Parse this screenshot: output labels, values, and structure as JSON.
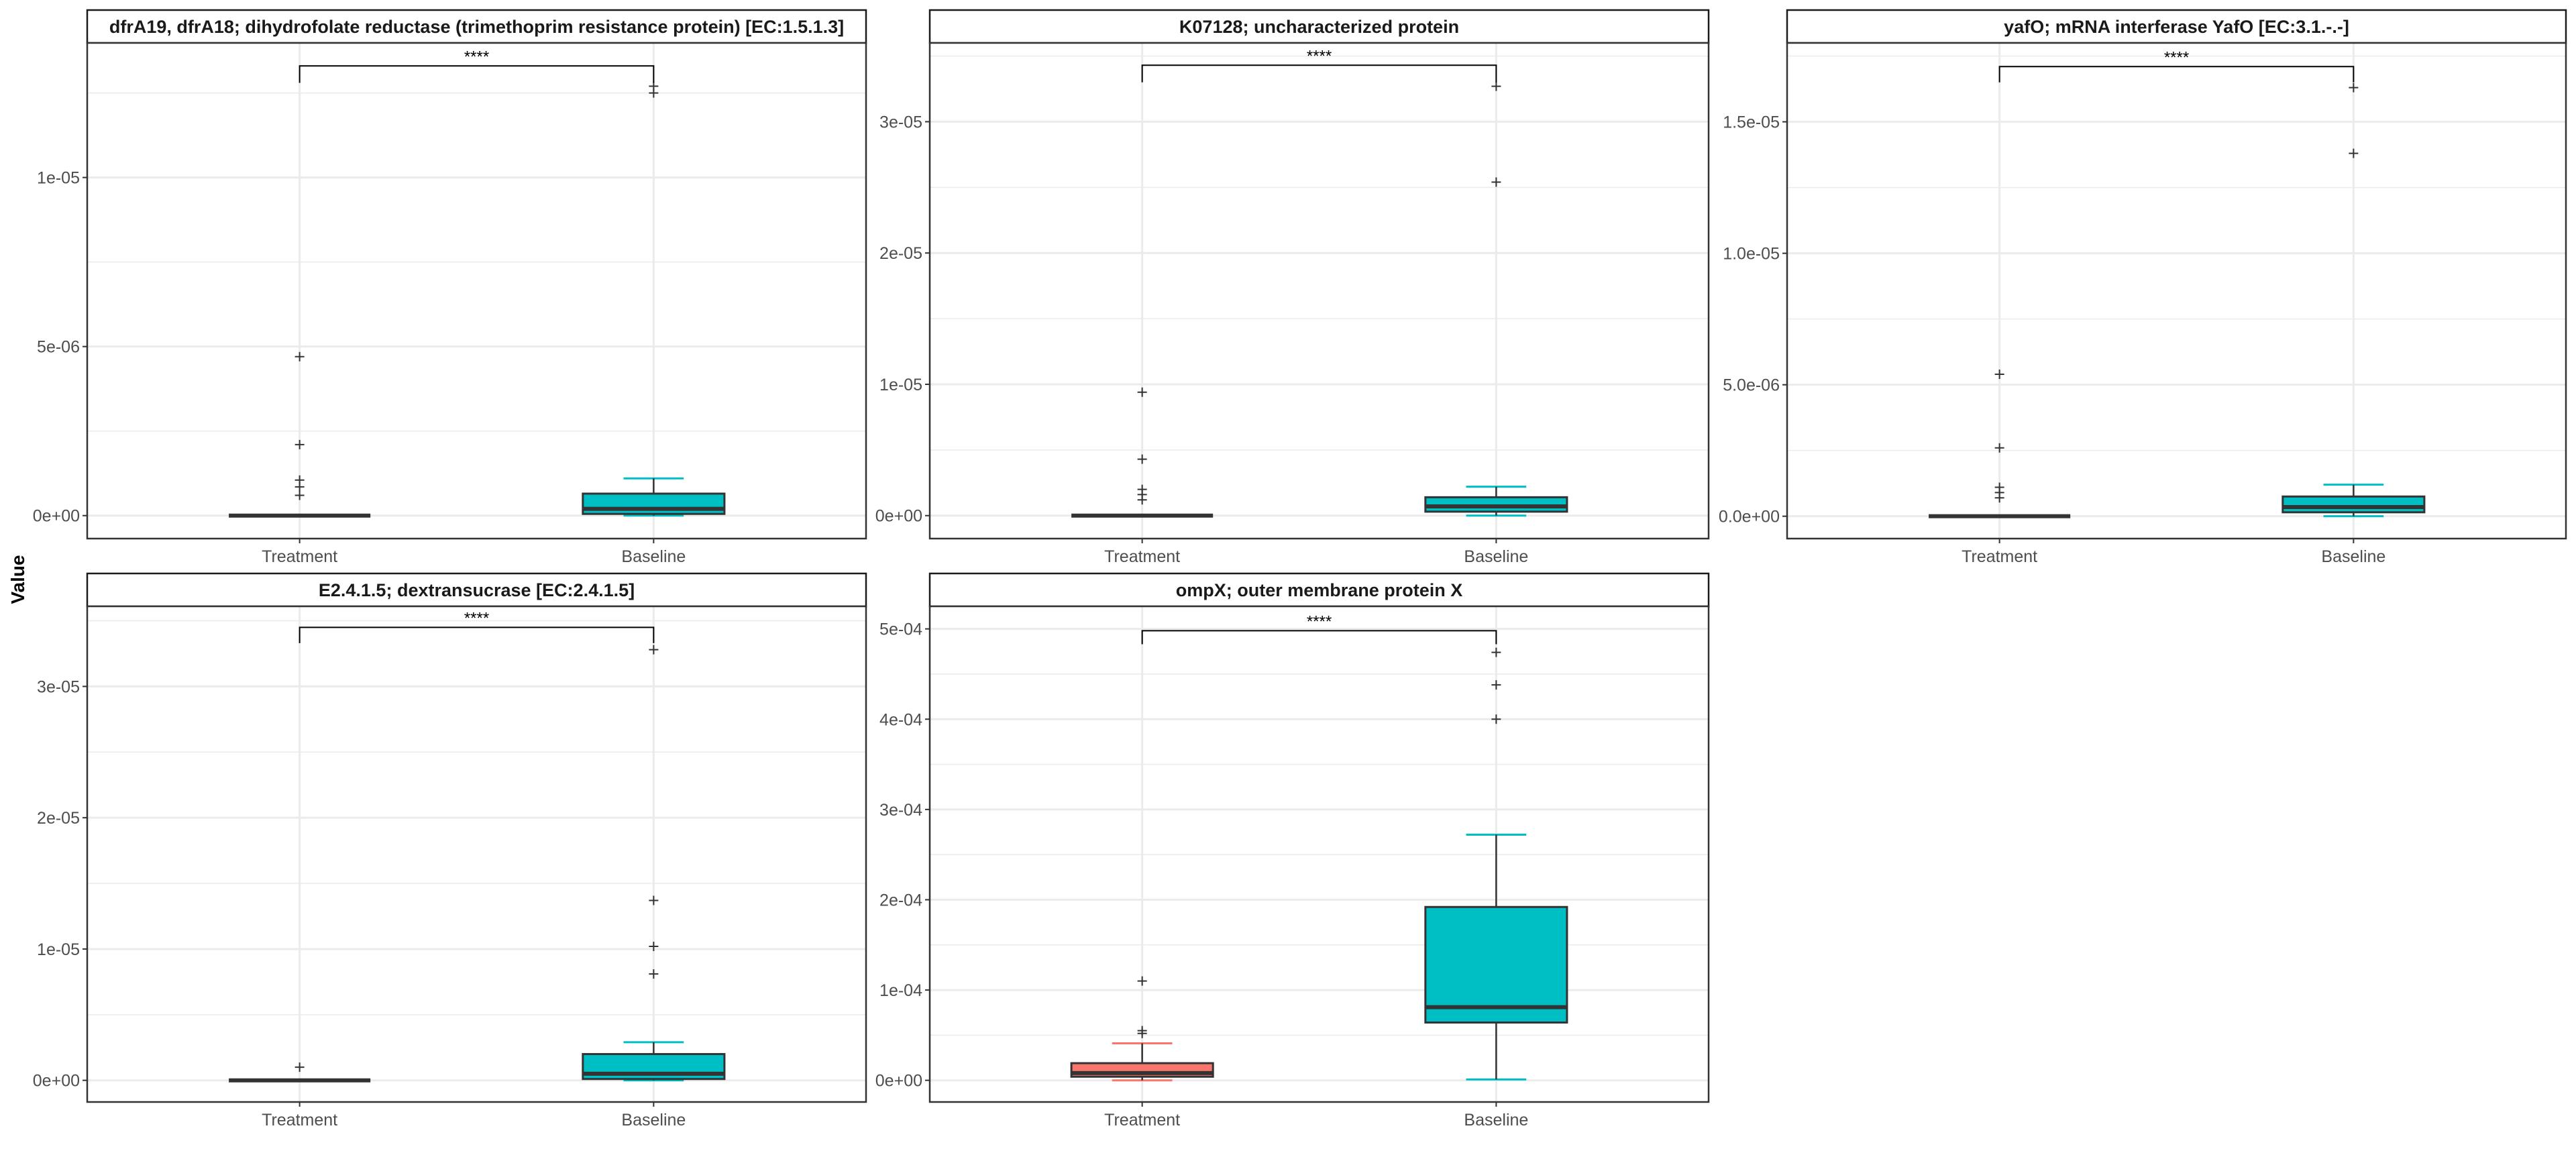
{
  "chart_data": [
    {
      "type": "box",
      "title": "dfrA19, dfrA18; dihydrofolate reductase (trimethoprim resistance protein) [EC:1.5.1.3]",
      "categories": [
        "Treatment",
        "Baseline"
      ],
      "ylim": [
        -6.8e-07,
        1.398e-05
      ],
      "yticks": [
        0,
        5e-06,
        1e-05
      ],
      "ytick_labels": [
        "0e+00",
        "5e-06",
        "1e-05"
      ],
      "yminor": [
        2.5e-06,
        7.5e-06,
        1.25e-05
      ],
      "significance": {
        "label": "****",
        "y": 1.33e-05,
        "y_drop": 1.28e-05
      },
      "boxes": [
        {
          "whisker_low": 0,
          "q1": 0,
          "median": 0,
          "q3": 0,
          "whisker_high": 0,
          "outliers": [
            4.7e-06,
            2.1e-06,
            1.05e-06,
            8.5e-07,
            6e-07
          ]
        },
        {
          "whisker_low": 0,
          "q1": 5e-08,
          "median": 2e-07,
          "q3": 6.5e-07,
          "whisker_high": 1.1e-06,
          "outliers": [
            1.27e-05,
            1.25e-05
          ]
        }
      ]
    },
    {
      "type": "box",
      "title": "K07128; uncharacterized protein",
      "categories": [
        "Treatment",
        "Baseline"
      ],
      "ylim": [
        -1.75e-06,
        3.6e-05
      ],
      "yticks": [
        0,
        1e-05,
        2e-05,
        3e-05
      ],
      "ytick_labels": [
        "0e+00",
        "1e-05",
        "2e-05",
        "3e-05"
      ],
      "yminor": [
        5e-06,
        1.5e-05,
        2.5e-05,
        3.5e-05
      ],
      "significance": {
        "label": "****",
        "y": 3.43e-05,
        "y_drop": 3.3e-05
      },
      "boxes": [
        {
          "whisker_low": 0,
          "q1": 0,
          "median": 0,
          "q3": 0,
          "whisker_high": 0,
          "outliers": [
            9.4e-06,
            4.3e-06,
            2e-06,
            1.6e-06,
            1.2e-06
          ]
        },
        {
          "whisker_low": 0,
          "q1": 3e-07,
          "median": 7e-07,
          "q3": 1.4e-06,
          "whisker_high": 2.2e-06,
          "outliers": [
            3.27e-05,
            2.54e-05
          ]
        }
      ]
    },
    {
      "type": "box",
      "title": "yafO; mRNA interferase YafO [EC:3.1.-.-]",
      "categories": [
        "Treatment",
        "Baseline"
      ],
      "ylim": [
        -8.5e-07,
        1.8e-05
      ],
      "yticks": [
        0,
        5e-06,
        1e-05,
        1.5e-05
      ],
      "ytick_labels": [
        "0.0e+00",
        "5.0e-06",
        "1.0e-05",
        "1.5e-05"
      ],
      "yminor": [
        2.5e-06,
        7.5e-06,
        1.25e-05,
        1.75e-05
      ],
      "significance": {
        "label": "****",
        "y": 1.71e-05,
        "y_drop": 1.65e-05
      },
      "boxes": [
        {
          "whisker_low": 0,
          "q1": 0,
          "median": 0,
          "q3": 0,
          "whisker_high": 0,
          "outliers": [
            5.4e-06,
            2.6e-06,
            1.1e-06,
            9e-07,
            7e-07
          ]
        },
        {
          "whisker_low": 0,
          "q1": 1.5e-07,
          "median": 3.5e-07,
          "q3": 7.5e-07,
          "whisker_high": 1.2e-06,
          "outliers": [
            1.63e-05,
            1.38e-05
          ]
        }
      ]
    },
    {
      "type": "box",
      "title": "E2.4.1.5; dextransucrase [EC:2.4.1.5]",
      "categories": [
        "Treatment",
        "Baseline"
      ],
      "ylim": [
        -1.65e-06,
        3.61e-05
      ],
      "yticks": [
        0,
        1e-05,
        2e-05,
        3e-05
      ],
      "ytick_labels": [
        "0e+00",
        "1e-05",
        "2e-05",
        "3e-05"
      ],
      "yminor": [
        5e-06,
        1.5e-05,
        2.5e-05,
        3.5e-05
      ],
      "significance": {
        "label": "****",
        "y": 3.45e-05,
        "y_drop": 3.33e-05
      },
      "boxes": [
        {
          "whisker_low": 0,
          "q1": 0,
          "median": 0,
          "q3": 0,
          "whisker_high": 0,
          "outliers": [
            1e-06
          ]
        },
        {
          "whisker_low": 0,
          "q1": 1e-07,
          "median": 5e-07,
          "q3": 2e-06,
          "whisker_high": 2.9e-06,
          "outliers": [
            3.28e-05,
            1.37e-05,
            1.02e-05,
            8.1e-06
          ]
        }
      ]
    },
    {
      "type": "box",
      "title": "ompX; outer membrane protein X",
      "categories": [
        "Treatment",
        "Baseline"
      ],
      "ylim": [
        -2.4e-05,
        0.000525
      ],
      "yticks": [
        0,
        0.0001,
        0.0002,
        0.0003,
        0.0004,
        0.0005
      ],
      "ytick_labels": [
        "0e+00",
        "1e-04",
        "2e-04",
        "3e-04",
        "4e-04",
        "5e-04"
      ],
      "yminor": [
        5e-05,
        0.00015,
        0.00025,
        0.00035,
        0.00045
      ],
      "significance": {
        "label": "****",
        "y": 0.000498,
        "y_drop": 0.000483
      },
      "boxes": [
        {
          "whisker_low": 0,
          "q1": 4e-06,
          "median": 8e-06,
          "q3": 1.9e-05,
          "whisker_high": 4.1e-05,
          "outliers": [
            0.00011,
            5.5e-05,
            5.2e-05
          ]
        },
        {
          "whisker_low": 1e-06,
          "q1": 6.4e-05,
          "median": 8.1e-05,
          "q3": 0.000192,
          "whisker_high": 0.000272,
          "outliers": [
            0.000474,
            0.000438,
            0.0004
          ]
        }
      ]
    }
  ],
  "ylabel": "Value",
  "colors": {
    "Treatment": "#F8766D",
    "Baseline": "#00BFC4",
    "box_outline": "#333333",
    "grid": "#EBEBEB"
  }
}
